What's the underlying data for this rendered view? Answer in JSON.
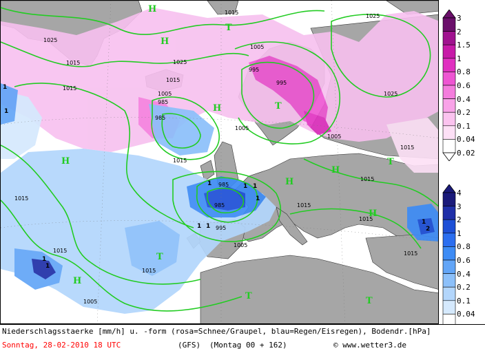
{
  "footer": {
    "line1": "Niederschlagsstaerke [mm/h] u. -form (rosa=Schnee/Graupel, blau=Regen/Eisregen), Bodendr.[hPa]",
    "date": "Sonntag, 28-02-2010  18 UTC",
    "model": "(GFS)",
    "run": "(Montag 00 + 162)",
    "copyright": "© www.wetter3.de"
  },
  "legend": {
    "snow": {
      "ticks": [
        "3",
        "2",
        "1.5",
        "1",
        "0.8",
        "0.6",
        "0.4",
        "0.2",
        "0.1",
        "0.04",
        "0.02"
      ],
      "colors": [
        "#6b0f6b",
        "#a0128f",
        "#c71aa8",
        "#e030c0",
        "#ee55d2",
        "#f47ddd",
        "#f9a3e8",
        "#fbc3ef",
        "#fde0f6",
        "#ffffff"
      ]
    },
    "rain": {
      "ticks": [
        "4",
        "3",
        "2",
        "1",
        "0.8",
        "0.6",
        "0.4",
        "0.2",
        "0.1",
        "0.04",
        "0.02"
      ],
      "colors": [
        "#1a1a7a",
        "#1f2fa8",
        "#1d4fd6",
        "#2b6ef0",
        "#3d8bf5",
        "#62a5f7",
        "#8cc0fa",
        "#b3d6fc",
        "#d5e9fd",
        "#ffffff"
      ]
    }
  },
  "map": {
    "colors": {
      "land": "#a6a6a6",
      "sea": "#ffffff",
      "isobar": "#22cc22",
      "border": "#333333"
    },
    "isobar_labels": [
      "1015",
      "1025",
      "1025",
      "1015",
      "1005",
      "1025",
      "1015",
      "1005",
      "1015",
      "995",
      "985",
      "985",
      "1005",
      "1025",
      "1015",
      "1005",
      "995",
      "985",
      "1005",
      "1015",
      "1005",
      "985",
      "995",
      "1015",
      "1015",
      "1015",
      "1015",
      "1015",
      "1015",
      "1015"
    ],
    "high_symbol": "H",
    "low_symbol": "T",
    "cell_labels": [
      "1",
      "1",
      "2",
      "1",
      "1",
      "1",
      "1",
      "1",
      "1",
      "1",
      "1",
      "1"
    ]
  }
}
